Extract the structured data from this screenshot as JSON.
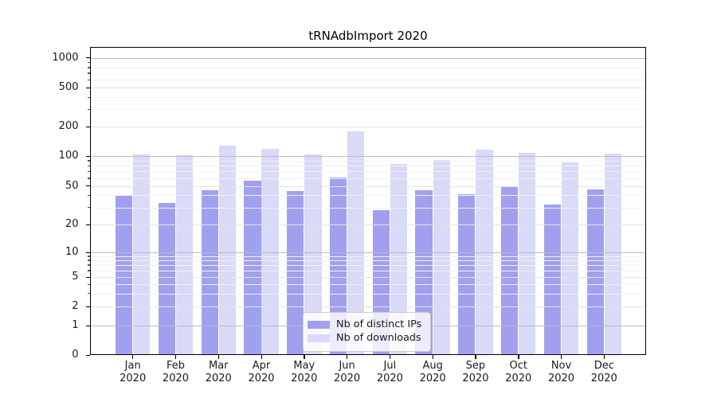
{
  "chart_data": {
    "type": "bar",
    "title": "tRNAdbImport 2020",
    "categories": [
      "Jan 2020",
      "Feb 2020",
      "Mar 2020",
      "Apr 2020",
      "May 2020",
      "Jun 2020",
      "Jul 2020",
      "Aug 2020",
      "Sep 2020",
      "Oct 2020",
      "Nov 2020",
      "Dec 2020"
    ],
    "series": [
      {
        "name": "Nb of distinct IPs",
        "color": "#a0a0ef",
        "values": [
          40,
          33,
          45,
          56,
          44,
          61,
          28,
          45,
          41,
          49,
          32,
          46
        ]
      },
      {
        "name": "Nb of downloads",
        "color": "#d9d9f8",
        "values": [
          104,
          103,
          128,
          118,
          104,
          180,
          84,
          92,
          117,
          108,
          86,
          106
        ]
      }
    ],
    "xlabel": "",
    "ylabel": "",
    "yscale": "asinh",
    "ylim": [
      0,
      1300
    ],
    "yticks": [
      0,
      1,
      2,
      5,
      10,
      20,
      50,
      100,
      200,
      500,
      1000
    ],
    "grid": "horizontal, major and minor, drawn above bars",
    "legend_position": "lower center",
    "legend_labels": [
      "Nb of distinct IPs",
      "Nb of downloads"
    ]
  },
  "colors": {
    "background": "#ffffff",
    "spine": "#000000",
    "grid_major": "#bdbdbd",
    "grid_mid": "#e4e4e4",
    "grid_minor": "#f2f2f2",
    "text": "#1a1a1a"
  }
}
